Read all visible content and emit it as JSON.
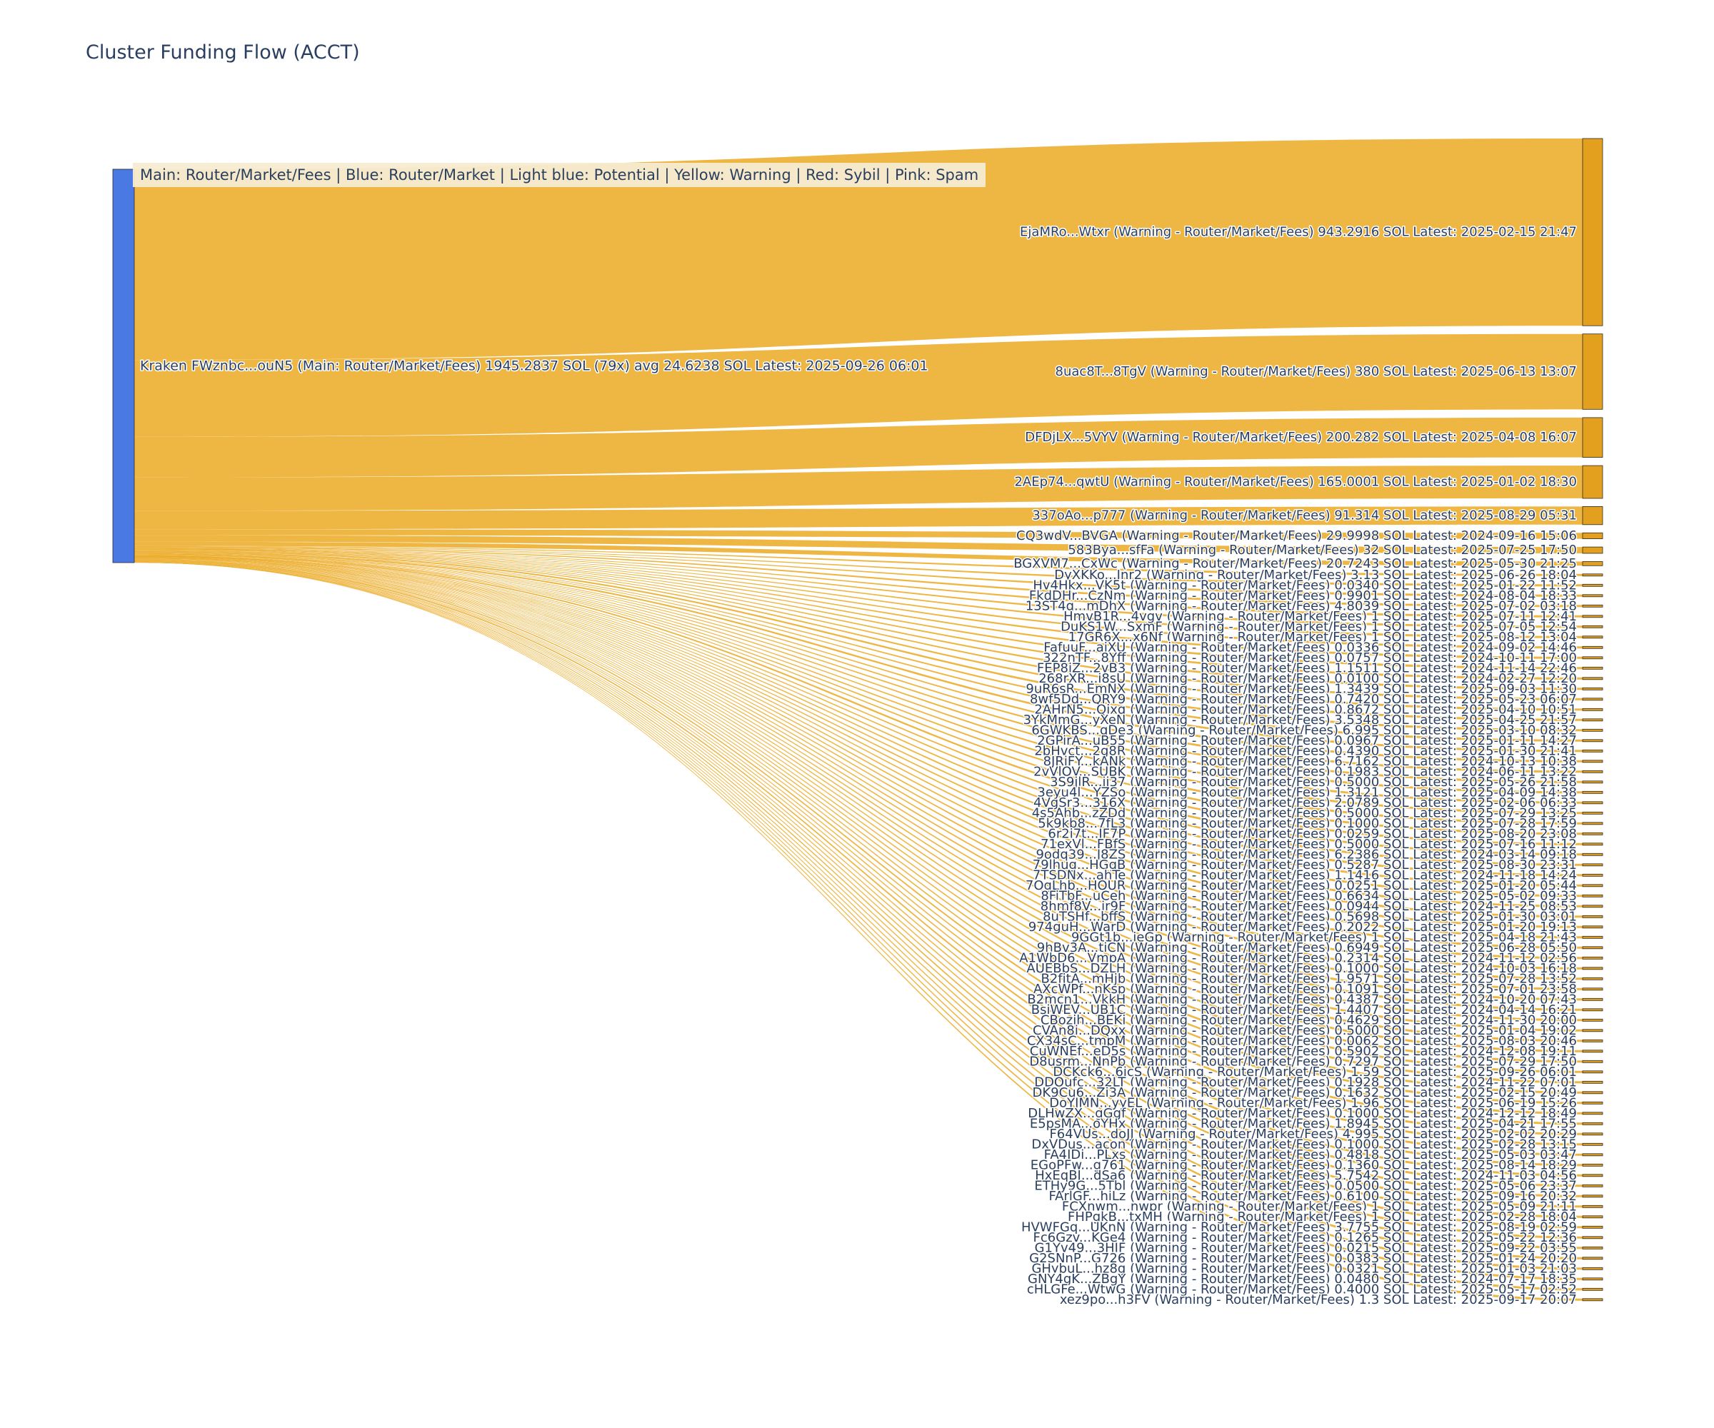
{
  "title": "Cluster Funding Flow (ACCT)",
  "legend_note": "Main: Router/Market/Fees  |  Blue: Router/Market | Light blue: Potential | Yellow: Warning | Red: Sybil | Pink: Spam",
  "colors": {
    "link": "#ECAC29",
    "dest_node": "#E3A01E",
    "source_node": "#4B79E4",
    "node_border": "#2B2B2B",
    "text": "#2A3F5F",
    "legend_bg": "#F6ECD2"
  },
  "chart_data": {
    "type": "sankey",
    "orientation": "horizontal",
    "source_node": {
      "label": "Kraken FWznbc...ouN5 (Main: Router/Market/Fees) 1945.2837 SOL (79x) avg 24.6238 SOL Latest: 2025-09-26 06:01",
      "total_sol": 1945.2837,
      "tx_count": 79,
      "avg_sol": 24.6238,
      "latest": "2025-09-26 06:01"
    },
    "flows": [
      {
        "label": "EjaMRo...Wtxr (Warning - Router/Market/Fees) 943.2916 SOL Latest: 2025-02-15 21:47",
        "value": 943.2916
      },
      {
        "label": "8uac8T...8TgV (Warning - Router/Market/Fees) 380 SOL Latest: 2025-06-13 13:07",
        "value": 380
      },
      {
        "label": "DFDjLX...5VYV (Warning - Router/Market/Fees) 200.282 SOL Latest: 2025-04-08 16:07",
        "value": 200.282
      },
      {
        "label": "2AEp74...qwtU (Warning - Router/Market/Fees) 165.0001 SOL Latest: 2025-01-02 18:30",
        "value": 165.0001
      },
      {
        "label": "337oAo...p777 (Warning - Router/Market/Fees) 91.314 SOL Latest: 2025-08-29 05:31",
        "value": 91.314
      },
      {
        "label": "CQ3wdV...BVGA (Warning - Router/Market/Fees) 29.9998 SOL Latest: 2024-09-16 15:06",
        "value": 29.9998
      },
      {
        "label": "583Bya...sfFa (Warning - Router/Market/Fees) 32 SOL Latest: 2025-07-25 17:50",
        "value": 32
      },
      {
        "label": "BGXVM7...CxWc (Warning - Router/Market/Fees) 20.7243 SOL Latest: 2025-05-30 21:25",
        "value": 20.7243
      },
      {
        "label": "DyXKKo...Jnr2 (Warning - Router/Market/Fees) 3.13 SOL Latest: 2025-06-26 18:04",
        "value": 3.13
      },
      {
        "label": "Hv4Hkx...VK5t (Warning - Router/Market/Fees) 0.0340 SOL Latest: 2025-01-22 11:52",
        "value": 0.034
      },
      {
        "label": "FkdDHr...CzNm (Warning - Router/Market/Fees) 0.9901 SOL Latest: 2024-08-04 18:33",
        "value": 0.9901
      },
      {
        "label": "13ST4q...mDhX (Warning - Router/Market/Fees) 4.8039 SOL Latest: 2025-07-02 03:18",
        "value": 4.8039
      },
      {
        "label": "HmvB1R...4vgv (Warning - Router/Market/Fees) 1 SOL Latest: 2025-07-11 12:41",
        "value": 1
      },
      {
        "label": "DuKS1W...SxmF (Warning - Router/Market/Fees) 1 SOL Latest: 2025-07-05 12:54",
        "value": 1
      },
      {
        "label": "17GR6X...x6Nf (Warning - Router/Market/Fees) 1 SOL Latest: 2025-08-12 13:04",
        "value": 1
      },
      {
        "label": "FafuuF...aiXU (Warning - Router/Market/Fees) 0.0336 SOL Latest: 2024-09-02 14:46",
        "value": 0.0336
      },
      {
        "label": "322nTF...8Yff (Warning - Router/Market/Fees) 0.0757 SOL Latest: 2024-10-11 17:00",
        "value": 0.0757
      },
      {
        "label": "FEP8jZ...2vB3 (Warning - Router/Market/Fees) 1.1511 SOL Latest: 2024-11-14 22:46",
        "value": 1.1511
      },
      {
        "label": "268rXR...i8sU (Warning - Router/Market/Fees) 0.0100 SOL Latest: 2024-02-27 12:20",
        "value": 0.01
      },
      {
        "label": "9uR6sR...EmNX (Warning - Router/Market/Fees) 1.3439 SOL Latest: 2025-09-03 11:30",
        "value": 1.3439
      },
      {
        "label": "8wf5Dd...QRY9 (Warning - Router/Market/Fees) 0.7420 SOL Latest: 2025-05-23 06:07",
        "value": 0.742
      },
      {
        "label": "2AHrN5...Qixq (Warning - Router/Market/Fees) 0.8672 SOL Latest: 2025-04-10 10:51",
        "value": 0.8672
      },
      {
        "label": "3YkMmG...yXeN (Warning - Router/Market/Fees) 3.5348 SOL Latest: 2025-04-25 21:57",
        "value": 3.5348
      },
      {
        "label": "6GWKBS...qDe3 (Warning - Router/Market/Fees) 6.995 SOL Latest: 2025-03-10 08:32",
        "value": 6.995
      },
      {
        "label": "2GPirA...uB55 (Warning - Router/Market/Fees) 0.0967 SOL Latest: 2025-01-11 14:27",
        "value": 0.0967
      },
      {
        "label": "2bHvct...2g8R (Warning - Router/Market/Fees) 0.4390 SOL Latest: 2025-01-30 21:41",
        "value": 0.439
      },
      {
        "label": "8JRiFY...kANk (Warning - Router/Market/Fees) 6.7162 SOL Latest: 2024-10-13 10:38",
        "value": 6.7162
      },
      {
        "label": "2vVlOV...SUBK (Warning - Router/Market/Fees) 0.1983 SOL Latest: 2024-06-11 13:22",
        "value": 0.1983
      },
      {
        "label": "3S9jlR...ii37 (Warning - Router/Market/Fees) 0.5000 SOL Latest: 2025-05-26 21:58",
        "value": 0.5
      },
      {
        "label": "3eyu4l...YZSo (Warning - Router/Market/Fees) 1.3121 SOL Latest: 2025-04-09 14:38",
        "value": 1.3121
      },
      {
        "label": "4VgSr3...316X (Warning - Router/Market/Fees) 2.0789 SOL Latest: 2025-02-06 06:33",
        "value": 2.0789
      },
      {
        "label": "4s5Ahb...zZDd (Warning - Router/Market/Fees) 0.5000 SOL Latest: 2025-07-29 13:25",
        "value": 0.5
      },
      {
        "label": "5k9kb8...7fL3 (Warning - Router/Market/Fees) 0.1000 SOL Latest: 2025-07-28 17:59",
        "value": 0.1
      },
      {
        "label": "6r2i7t...JF7P (Warning - Router/Market/Fees) 0.0259 SOL Latest: 2025-08-20 23:08",
        "value": 0.0259
      },
      {
        "label": "71exVl...FBfS (Warning - Router/Market/Fees) 0.5000 SOL Latest: 2025-07-16 11:12",
        "value": 0.5
      },
      {
        "label": "9odq39...J8ZS (Warning - Router/Market/Fees) 6.2386 SOL Latest: 2024-03-14 09:18",
        "value": 6.2386
      },
      {
        "label": "79lhug...HGgB (Warning - Router/Market/Fees) 0.5287 SOL Latest: 2025-08-30 23:31",
        "value": 0.5287
      },
      {
        "label": "7TSDNx...ahTe (Warning - Router/Market/Fees) 1.1416 SOL Latest: 2024-11-18 14:24",
        "value": 1.1416
      },
      {
        "label": "7OgLhb...HOUR (Warning - Router/Market/Fees) 0.0251 SOL Latest: 2025-01-20 05:44",
        "value": 0.0251
      },
      {
        "label": "8FiTbF...uCeh (Warning - Router/Market/Fees) 0.6634 SOL Latest: 2025-05-02 09:33",
        "value": 0.6634
      },
      {
        "label": "8hmf8V...jr9F (Warning - Router/Market/Fees) 0.0944 SOL Latest: 2024-11-25 08:53",
        "value": 0.0944
      },
      {
        "label": "8uTSHf...bffS (Warning - Router/Market/Fees) 0.5698 SOL Latest: 2025-01-30 03:01",
        "value": 0.5698
      },
      {
        "label": "974guH...WarD (Warning - Router/Market/Fees) 0.2022 SOL Latest: 2025-01-20 19:13",
        "value": 0.2022
      },
      {
        "label": "9GGt1b...ieGp (Warning - Router/Market/Fees) 1 SOL Latest: 2025-04-18 21:43",
        "value": 1
      },
      {
        "label": "9hBv3A...tiCN (Warning - Router/Market/Fees) 0.6949 SOL Latest: 2025-06-28 05:50",
        "value": 0.6949
      },
      {
        "label": "A1WbD6...VmpA (Warning - Router/Market/Fees) 0.2314 SOL Latest: 2024-11-12 02:56",
        "value": 0.2314
      },
      {
        "label": "AUEBbS...DZLH (Warning - Router/Market/Fees) 0.1000 SOL Latest: 2024-10-03 16:18",
        "value": 0.1
      },
      {
        "label": "B2fjtA...mHjb (Warning - Router/Market/Fees) 1.9571 SOL Latest: 2025-07-28 13:52",
        "value": 1.9571
      },
      {
        "label": "AXcWPf...nKsp (Warning - Router/Market/Fees) 0.1091 SOL Latest: 2025-07-01 23:58",
        "value": 0.1091
      },
      {
        "label": "B2mcn1...VkkH (Warning - Router/Market/Fees) 0.4387 SOL Latest: 2024-10-20 07:43",
        "value": 0.4387
      },
      {
        "label": "BsiWEV...UB1C (Warning - Router/Market/Fees) 1.4407 SOL Latest: 2024-04-14 16:21",
        "value": 1.4407
      },
      {
        "label": "CBozih...BEKi (Warning - Router/Market/Fees) 0.4629 SOL Latest: 2024-11-30 20:00",
        "value": 0.4629
      },
      {
        "label": "CVAn8i...DQxx (Warning - Router/Market/Fees) 0.5000 SOL Latest: 2025-01-04 19:02",
        "value": 0.5
      },
      {
        "label": "CX34sC...tmpM (Warning - Router/Market/Fees) 0.0062 SOL Latest: 2025-08-03 20:46",
        "value": 0.0062
      },
      {
        "label": "CuWNEf...eD5s (Warning - Router/Market/Fees) 0.5902 SOL Latest: 2024-12-08 19:11",
        "value": 0.5902
      },
      {
        "label": "D8usrm...NnPb (Warning - Router/Market/Fees) 0.7297 SOL Latest: 2025-07-29 17:50",
        "value": 0.7297
      },
      {
        "label": "DCKck6...6icS (Warning - Router/Market/Fees) 1.59 SOL Latest: 2025-09-26 06:01",
        "value": 1.59
      },
      {
        "label": "DDOufc...32LT (Warning - Router/Market/Fees) 0.1928 SOL Latest: 2024-11-22 07:01",
        "value": 0.1928
      },
      {
        "label": "DK9Cu6...Zi3A (Warning - Router/Market/Fees) 0.1632 SOL Latest: 2025-02-15 20:49",
        "value": 0.1632
      },
      {
        "label": "DoYJMN...yyEL (Warning - Router/Market/Fees) 1.96 SOL Latest: 2025-06-19 15:26",
        "value": 1.96
      },
      {
        "label": "DLHwZX...gGgf (Warning - Router/Market/Fees) 0.1000 SOL Latest: 2024-12-12 18:49",
        "value": 0.1
      },
      {
        "label": "E5psMA...oYHx (Warning - Router/Market/Fees) 1.8945 SOL Latest: 2025-04-21 17:55",
        "value": 1.8945
      },
      {
        "label": "F64VUs...doJJ (Warning - Router/Market/Fees) 4.995 SOL Latest: 2025-02-02 20:29",
        "value": 4.995
      },
      {
        "label": "DxVDus...acon (Warning - Router/Market/Fees) 0.1000 SOL Latest: 2025-02-28 13:15",
        "value": 0.1
      },
      {
        "label": "FA4IDi...PLxs (Warning - Router/Market/Fees) 0.4818 SOL Latest: 2025-05-03 03:47",
        "value": 0.4818
      },
      {
        "label": "EGoPFw...g761 (Warning - Router/Market/Fees) 0.1360 SOL Latest: 2025-08-14 18:29",
        "value": 0.136
      },
      {
        "label": "HxEqBJ...dSa6 (Warning - Router/Market/Fees) 5.7542 SOL Latest: 2024-11-03 04:56",
        "value": 5.7542
      },
      {
        "label": "ETHy9G...5Tbl (Warning - Router/Market/Fees) 0.0500 SOL Latest: 2025-05-06 23:37",
        "value": 0.05
      },
      {
        "label": "FArlGF...hiLz (Warning - Router/Market/Fees) 0.6100 SOL Latest: 2025-09-16 20:32",
        "value": 0.61
      },
      {
        "label": "FCXnwm...nwpr (Warning - Router/Market/Fees) 1 SOL Latest: 2025-05-09 21:11",
        "value": 1
      },
      {
        "label": "FHPgkB...txMH (Warning - Router/Market/Fees) 1 SOL Latest: 2025-02-28 18:04",
        "value": 1
      },
      {
        "label": "HVWFGq...UKnN (Warning - Router/Market/Fees) 3.7755 SOL Latest: 2025-08-19 02:59",
        "value": 3.7755
      },
      {
        "label": "Fc6Gzv...KGe4 (Warning - Router/Market/Fees) 0.1265 SOL Latest: 2025-05-22 12:36",
        "value": 0.1265
      },
      {
        "label": "G1Yv49...3HIF (Warning - Router/Market/Fees) 0.0215 SOL Latest: 2025-09-22 03:55",
        "value": 0.0215
      },
      {
        "label": "G2SNnP...G726 (Warning - Router/Market/Fees) 0.0383 SOL Latest: 2025-01-24 20:20",
        "value": 0.0383
      },
      {
        "label": "GHybuL...hz8g (Warning - Router/Market/Fees) 0.0321 SOL Latest: 2025-01-03 21:03",
        "value": 0.0321
      },
      {
        "label": "GNY4gK...ZBgY (Warning - Router/Market/Fees) 0.0480 SOL Latest: 2024-07-17 18:35",
        "value": 0.048
      },
      {
        "label": "cHLGFe...WtwG (Warning - Router/Market/Fees) 0.4000 SOL Latest: 2025-05-17 02:52",
        "value": 0.4
      },
      {
        "label": "xez9po...h3FV (Warning - Router/Market/Fees) 1.3 SOL Latest: 2025-09-17 20:07",
        "value": 1.3
      }
    ]
  }
}
